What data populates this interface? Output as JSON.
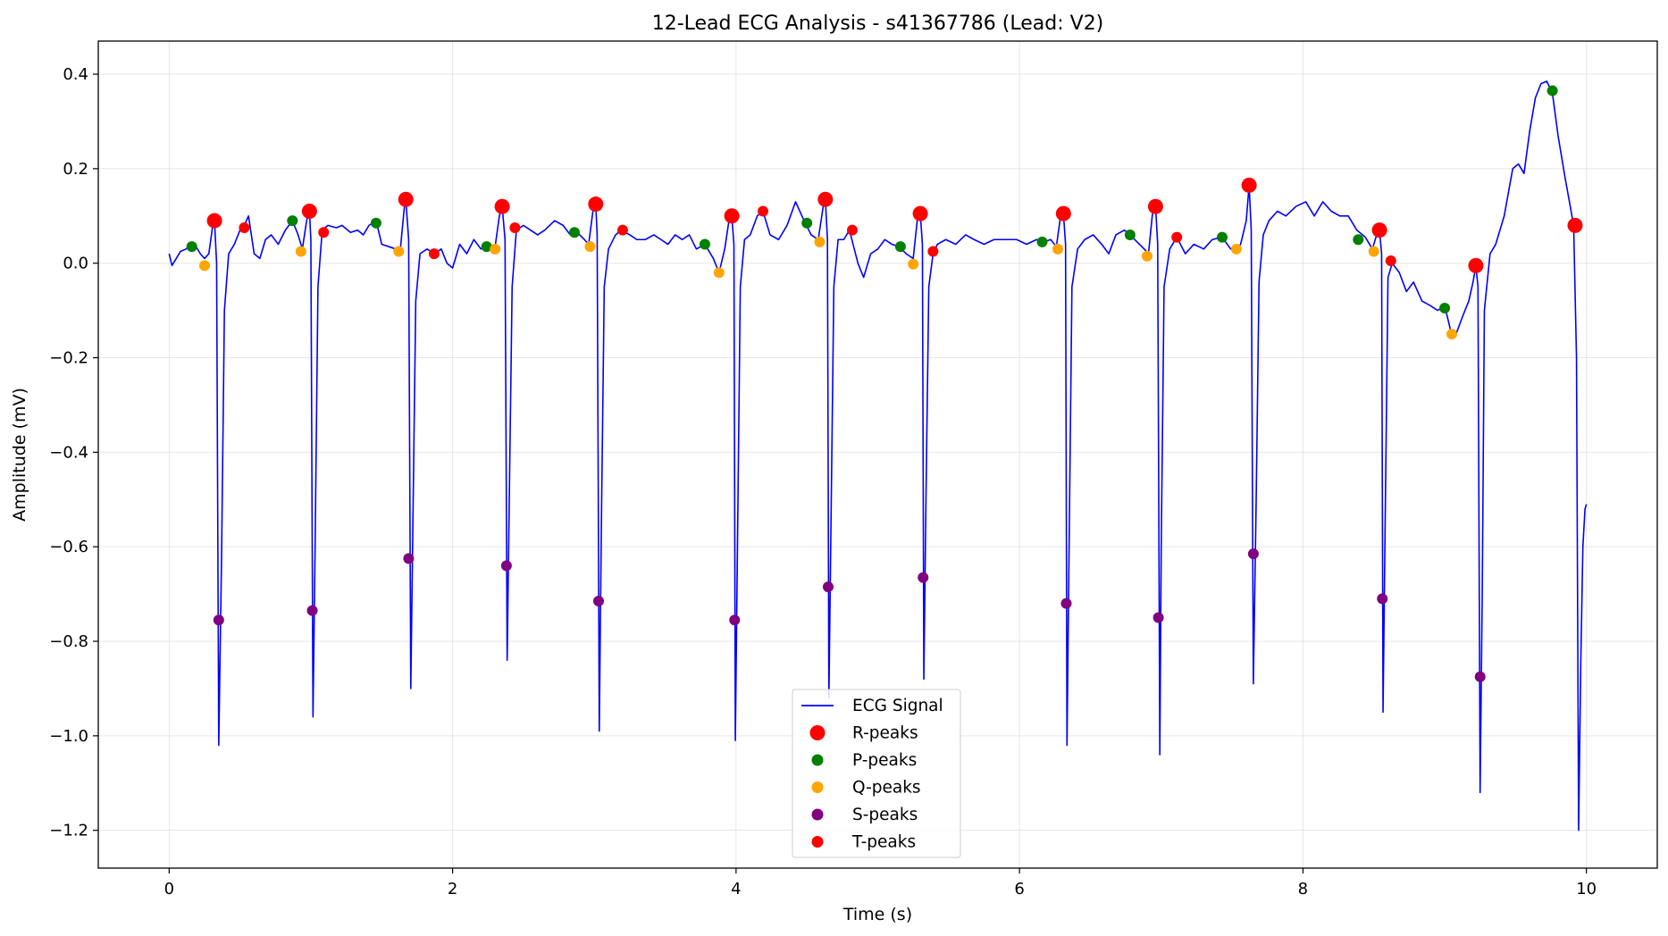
{
  "chart_data": {
    "type": "line",
    "title": "12-Lead ECG Analysis - s41367786 (Lead: V2)",
    "xlabel": "Time (s)",
    "ylabel": "Amplitude (mV)",
    "xlim": [
      -0.5,
      10.5
    ],
    "ylim": [
      -1.28,
      0.47
    ],
    "xticks": [
      0,
      2,
      4,
      6,
      8,
      10
    ],
    "yticks": [
      0.4,
      0.2,
      0.0,
      -0.2,
      -0.4,
      -0.6,
      -0.8,
      -1.0,
      -1.2
    ],
    "xtick_labels": [
      "0",
      "2",
      "4",
      "6",
      "8",
      "10"
    ],
    "ytick_labels": [
      "0.4",
      "0.2",
      "0.0",
      "−0.2",
      "−0.4",
      "−0.6",
      "−0.8",
      "−1.0",
      "−1.2"
    ],
    "grid": true,
    "legend_position": "lower-center",
    "colors": {
      "signal": "#0000ff",
      "r_peaks": "#ff0000",
      "p_peaks": "#008000",
      "q_peaks": "#ffa500",
      "s_peaks": "#800080",
      "t_peaks": "#ff0000"
    },
    "signal": {
      "name": "ECG Signal",
      "points": [
        [
          0.0,
          0.02
        ],
        [
          0.02,
          -0.005
        ],
        [
          0.05,
          0.01
        ],
        [
          0.08,
          0.025
        ],
        [
          0.12,
          0.03
        ],
        [
          0.15,
          0.04
        ],
        [
          0.19,
          0.035
        ],
        [
          0.22,
          0.02
        ],
        [
          0.25,
          0.01
        ],
        [
          0.28,
          0.02
        ],
        [
          0.31,
          0.085
        ],
        [
          0.32,
          0.09
        ],
        [
          0.335,
          0.0
        ],
        [
          0.35,
          -1.02
        ],
        [
          0.37,
          -0.62
        ],
        [
          0.39,
          -0.1
        ],
        [
          0.42,
          0.02
        ],
        [
          0.46,
          0.04
        ],
        [
          0.5,
          0.07
        ],
        [
          0.53,
          0.08
        ],
        [
          0.56,
          0.1
        ],
        [
          0.6,
          0.02
        ],
        [
          0.64,
          0.01
        ],
        [
          0.68,
          0.05
        ],
        [
          0.72,
          0.06
        ],
        [
          0.77,
          0.04
        ],
        [
          0.82,
          0.07
        ],
        [
          0.87,
          0.09
        ],
        [
          0.91,
          0.06
        ],
        [
          0.94,
          0.03
        ],
        [
          0.97,
          0.09
        ],
        [
          0.99,
          0.11
        ],
        [
          1.0,
          0.05
        ],
        [
          1.015,
          -0.96
        ],
        [
          1.03,
          -0.6
        ],
        [
          1.05,
          -0.05
        ],
        [
          1.08,
          0.07
        ],
        [
          1.12,
          0.08
        ],
        [
          1.18,
          0.075
        ],
        [
          1.22,
          0.08
        ],
        [
          1.28,
          0.065
        ],
        [
          1.33,
          0.07
        ],
        [
          1.37,
          0.06
        ],
        [
          1.41,
          0.08
        ],
        [
          1.46,
          0.09
        ],
        [
          1.5,
          0.04
        ],
        [
          1.55,
          0.035
        ],
        [
          1.6,
          0.03
        ],
        [
          1.63,
          0.025
        ],
        [
          1.66,
          0.12
        ],
        [
          1.67,
          0.135
        ],
        [
          1.69,
          0.05
        ],
        [
          1.705,
          -0.9
        ],
        [
          1.72,
          -0.55
        ],
        [
          1.74,
          -0.08
        ],
        [
          1.77,
          0.02
        ],
        [
          1.82,
          0.03
        ],
        [
          1.87,
          0.02
        ],
        [
          1.92,
          0.03
        ],
        [
          1.96,
          0.0
        ],
        [
          2.0,
          -0.01
        ],
        [
          2.05,
          0.04
        ],
        [
          2.1,
          0.02
        ],
        [
          2.15,
          0.05
        ],
        [
          2.2,
          0.03
        ],
        [
          2.25,
          0.04
        ],
        [
          2.3,
          0.035
        ],
        [
          2.33,
          0.1
        ],
        [
          2.35,
          0.12
        ],
        [
          2.37,
          0.05
        ],
        [
          2.385,
          -0.84
        ],
        [
          2.4,
          -0.5
        ],
        [
          2.42,
          -0.05
        ],
        [
          2.45,
          0.07
        ],
        [
          2.5,
          0.08
        ],
        [
          2.55,
          0.07
        ],
        [
          2.6,
          0.06
        ],
        [
          2.65,
          0.07
        ],
        [
          2.72,
          0.09
        ],
        [
          2.78,
          0.08
        ],
        [
          2.83,
          0.06
        ],
        [
          2.88,
          0.065
        ],
        [
          2.93,
          0.05
        ],
        [
          2.96,
          0.04
        ],
        [
          2.99,
          0.11
        ],
        [
          3.01,
          0.125
        ],
        [
          3.02,
          0.06
        ],
        [
          3.035,
          -0.99
        ],
        [
          3.05,
          -0.55
        ],
        [
          3.07,
          -0.05
        ],
        [
          3.1,
          0.03
        ],
        [
          3.15,
          0.06
        ],
        [
          3.19,
          0.07
        ],
        [
          3.25,
          0.06
        ],
        [
          3.3,
          0.05
        ],
        [
          3.36,
          0.05
        ],
        [
          3.42,
          0.06
        ],
        [
          3.47,
          0.05
        ],
        [
          3.52,
          0.04
        ],
        [
          3.57,
          0.06
        ],
        [
          3.62,
          0.05
        ],
        [
          3.67,
          0.06
        ],
        [
          3.72,
          0.03
        ],
        [
          3.78,
          0.04
        ],
        [
          3.84,
          0.01
        ],
        [
          3.88,
          -0.02
        ],
        [
          3.92,
          0.03
        ],
        [
          3.95,
          0.09
        ],
        [
          3.97,
          0.1
        ],
        [
          3.985,
          0.04
        ],
        [
          3.995,
          -1.01
        ],
        [
          4.01,
          -0.6
        ],
        [
          4.03,
          -0.05
        ],
        [
          4.06,
          0.05
        ],
        [
          4.1,
          0.06
        ],
        [
          4.15,
          0.1
        ],
        [
          4.19,
          0.11
        ],
        [
          4.24,
          0.06
        ],
        [
          4.3,
          0.05
        ],
        [
          4.36,
          0.08
        ],
        [
          4.42,
          0.13
        ],
        [
          4.48,
          0.09
        ],
        [
          4.53,
          0.06
        ],
        [
          4.58,
          0.05
        ],
        [
          4.62,
          0.13
        ],
        [
          4.63,
          0.135
        ],
        [
          4.645,
          0.05
        ],
        [
          4.655,
          -0.92
        ],
        [
          4.67,
          -0.55
        ],
        [
          4.69,
          -0.05
        ],
        [
          4.72,
          0.05
        ],
        [
          4.76,
          0.05
        ],
        [
          4.8,
          0.07
        ],
        [
          4.86,
          0.0
        ],
        [
          4.9,
          -0.03
        ],
        [
          4.95,
          0.02
        ],
        [
          5.0,
          0.03
        ],
        [
          5.05,
          0.05
        ],
        [
          5.1,
          0.04
        ],
        [
          5.15,
          0.035
        ],
        [
          5.2,
          0.02
        ],
        [
          5.25,
          0.01
        ],
        [
          5.28,
          0.095
        ],
        [
          5.3,
          0.105
        ],
        [
          5.315,
          0.04
        ],
        [
          5.325,
          -0.88
        ],
        [
          5.34,
          -0.5
        ],
        [
          5.36,
          -0.05
        ],
        [
          5.39,
          0.02
        ],
        [
          5.42,
          0.04
        ],
        [
          5.48,
          0.05
        ],
        [
          5.55,
          0.04
        ],
        [
          5.62,
          0.06
        ],
        [
          5.68,
          0.05
        ],
        [
          5.75,
          0.04
        ],
        [
          5.82,
          0.05
        ],
        [
          5.9,
          0.05
        ],
        [
          5.98,
          0.05
        ],
        [
          6.05,
          0.04
        ],
        [
          6.12,
          0.05
        ],
        [
          6.17,
          0.045
        ],
        [
          6.22,
          0.05
        ],
        [
          6.26,
          0.035
        ],
        [
          6.29,
          0.1
        ],
        [
          6.31,
          0.105
        ],
        [
          6.325,
          0.04
        ],
        [
          6.335,
          -1.02
        ],
        [
          6.35,
          -0.6
        ],
        [
          6.37,
          -0.05
        ],
        [
          6.41,
          0.03
        ],
        [
          6.46,
          0.05
        ],
        [
          6.52,
          0.06
        ],
        [
          6.58,
          0.04
        ],
        [
          6.63,
          0.02
        ],
        [
          6.68,
          0.06
        ],
        [
          6.74,
          0.07
        ],
        [
          6.78,
          0.06
        ],
        [
          6.83,
          0.045
        ],
        [
          6.88,
          0.03
        ],
        [
          6.91,
          0.02
        ],
        [
          6.94,
          0.11
        ],
        [
          6.96,
          0.12
        ],
        [
          6.975,
          0.04
        ],
        [
          6.99,
          -1.04
        ],
        [
          7.0,
          -0.6
        ],
        [
          7.02,
          -0.05
        ],
        [
          7.06,
          0.03
        ],
        [
          7.11,
          0.055
        ],
        [
          7.17,
          0.02
        ],
        [
          7.23,
          0.04
        ],
        [
          7.3,
          0.03
        ],
        [
          7.36,
          0.05
        ],
        [
          7.43,
          0.055
        ],
        [
          7.49,
          0.03
        ],
        [
          7.53,
          0.03
        ],
        [
          7.56,
          0.04
        ],
        [
          7.6,
          0.09
        ],
        [
          7.62,
          0.165
        ],
        [
          7.635,
          0.07
        ],
        [
          7.65,
          -0.89
        ],
        [
          7.67,
          -0.5
        ],
        [
          7.69,
          -0.04
        ],
        [
          7.72,
          0.06
        ],
        [
          7.76,
          0.09
        ],
        [
          7.82,
          0.11
        ],
        [
          7.88,
          0.1
        ],
        [
          7.95,
          0.12
        ],
        [
          8.02,
          0.13
        ],
        [
          8.08,
          0.1
        ],
        [
          8.14,
          0.13
        ],
        [
          8.2,
          0.11
        ],
        [
          8.26,
          0.1
        ],
        [
          8.32,
          0.1
        ],
        [
          8.38,
          0.07
        ],
        [
          8.44,
          0.055
        ],
        [
          8.49,
          0.03
        ],
        [
          8.52,
          0.06
        ],
        [
          8.54,
          0.07
        ],
        [
          8.555,
          0.02
        ],
        [
          8.565,
          -0.95
        ],
        [
          8.58,
          -0.55
        ],
        [
          8.6,
          -0.03
        ],
        [
          8.63,
          0.0
        ],
        [
          8.68,
          -0.02
        ],
        [
          8.73,
          -0.06
        ],
        [
          8.78,
          -0.04
        ],
        [
          8.84,
          -0.08
        ],
        [
          8.9,
          -0.09
        ],
        [
          8.95,
          -0.1
        ],
        [
          9.0,
          -0.09
        ],
        [
          9.04,
          -0.14
        ],
        [
          9.08,
          -0.15
        ],
        [
          9.13,
          -0.11
        ],
        [
          9.17,
          -0.08
        ],
        [
          9.2,
          -0.04
        ],
        [
          9.22,
          -0.005
        ],
        [
          9.235,
          -0.05
        ],
        [
          9.25,
          -1.12
        ],
        [
          9.265,
          -0.7
        ],
        [
          9.28,
          -0.1
        ],
        [
          9.32,
          0.02
        ],
        [
          9.36,
          0.04
        ],
        [
          9.42,
          0.1
        ],
        [
          9.48,
          0.2
        ],
        [
          9.52,
          0.21
        ],
        [
          9.56,
          0.19
        ],
        [
          9.6,
          0.28
        ],
        [
          9.64,
          0.35
        ],
        [
          9.68,
          0.38
        ],
        [
          9.72,
          0.385
        ],
        [
          9.76,
          0.36
        ],
        [
          9.8,
          0.27
        ],
        [
          9.85,
          0.18
        ],
        [
          9.88,
          0.13
        ],
        [
          9.91,
          0.08
        ],
        [
          9.93,
          -0.2
        ],
        [
          9.945,
          -1.2
        ],
        [
          9.96,
          -0.85
        ],
        [
          9.975,
          -0.6
        ],
        [
          9.99,
          -0.52
        ],
        [
          10.0,
          -0.51
        ]
      ]
    },
    "legend": [
      {
        "label": "ECG Signal",
        "marker": "line",
        "color": "#0000ff"
      },
      {
        "label": "R-peaks",
        "marker": "circle-large",
        "color": "#ff0000"
      },
      {
        "label": "P-peaks",
        "marker": "circle",
        "color": "#008000"
      },
      {
        "label": "Q-peaks",
        "marker": "circle",
        "color": "#ffa500"
      },
      {
        "label": "S-peaks",
        "marker": "circle",
        "color": "#800080"
      },
      {
        "label": "T-peaks",
        "marker": "circle",
        "color": "#ff0000"
      }
    ],
    "peaks": {
      "r_peaks": [
        [
          0.32,
          0.09
        ],
        [
          0.99,
          0.11
        ],
        [
          1.67,
          0.135
        ],
        [
          2.35,
          0.12
        ],
        [
          3.01,
          0.125
        ],
        [
          3.97,
          0.1
        ],
        [
          4.63,
          0.135
        ],
        [
          5.3,
          0.105
        ],
        [
          6.31,
          0.105
        ],
        [
          6.96,
          0.12
        ],
        [
          7.62,
          0.165
        ],
        [
          8.54,
          0.07
        ],
        [
          9.22,
          -0.005
        ],
        [
          9.92,
          0.08
        ]
      ],
      "p_peaks": [
        [
          0.16,
          0.035
        ],
        [
          0.87,
          0.09
        ],
        [
          1.46,
          0.085
        ],
        [
          2.24,
          0.035
        ],
        [
          2.86,
          0.065
        ],
        [
          3.78,
          0.04
        ],
        [
          4.5,
          0.085
        ],
        [
          5.16,
          0.035
        ],
        [
          6.16,
          0.045
        ],
        [
          6.78,
          0.06
        ],
        [
          7.43,
          0.055
        ],
        [
          8.39,
          0.05
        ],
        [
          9.0,
          -0.095
        ],
        [
          9.76,
          0.365
        ]
      ],
      "q_peaks": [
        [
          0.25,
          -0.005
        ],
        [
          0.93,
          0.025
        ],
        [
          1.62,
          0.025
        ],
        [
          2.3,
          0.03
        ],
        [
          2.97,
          0.035
        ],
        [
          3.88,
          -0.02
        ],
        [
          4.59,
          0.045
        ],
        [
          5.25,
          -0.002
        ],
        [
          6.27,
          0.03
        ],
        [
          6.9,
          0.015
        ],
        [
          7.53,
          0.03
        ],
        [
          8.5,
          0.025
        ],
        [
          9.05,
          -0.15
        ]
      ],
      "s_peaks": [
        [
          0.35,
          -0.755
        ],
        [
          1.01,
          -0.735
        ],
        [
          1.69,
          -0.625
        ],
        [
          2.38,
          -0.64
        ],
        [
          3.03,
          -0.715
        ],
        [
          3.99,
          -0.755
        ],
        [
          4.65,
          -0.685
        ],
        [
          5.32,
          -0.665
        ],
        [
          6.33,
          -0.72
        ],
        [
          6.98,
          -0.75
        ],
        [
          7.65,
          -0.615
        ],
        [
          8.56,
          -0.71
        ],
        [
          9.25,
          -0.875
        ]
      ],
      "t_peaks": [
        [
          0.53,
          0.075
        ],
        [
          1.09,
          0.065
        ],
        [
          1.87,
          0.02
        ],
        [
          2.44,
          0.075
        ],
        [
          3.2,
          0.07
        ],
        [
          4.19,
          0.11
        ],
        [
          4.82,
          0.07
        ],
        [
          5.39,
          0.025
        ],
        [
          7.11,
          0.055
        ],
        [
          8.62,
          0.005
        ]
      ]
    }
  }
}
